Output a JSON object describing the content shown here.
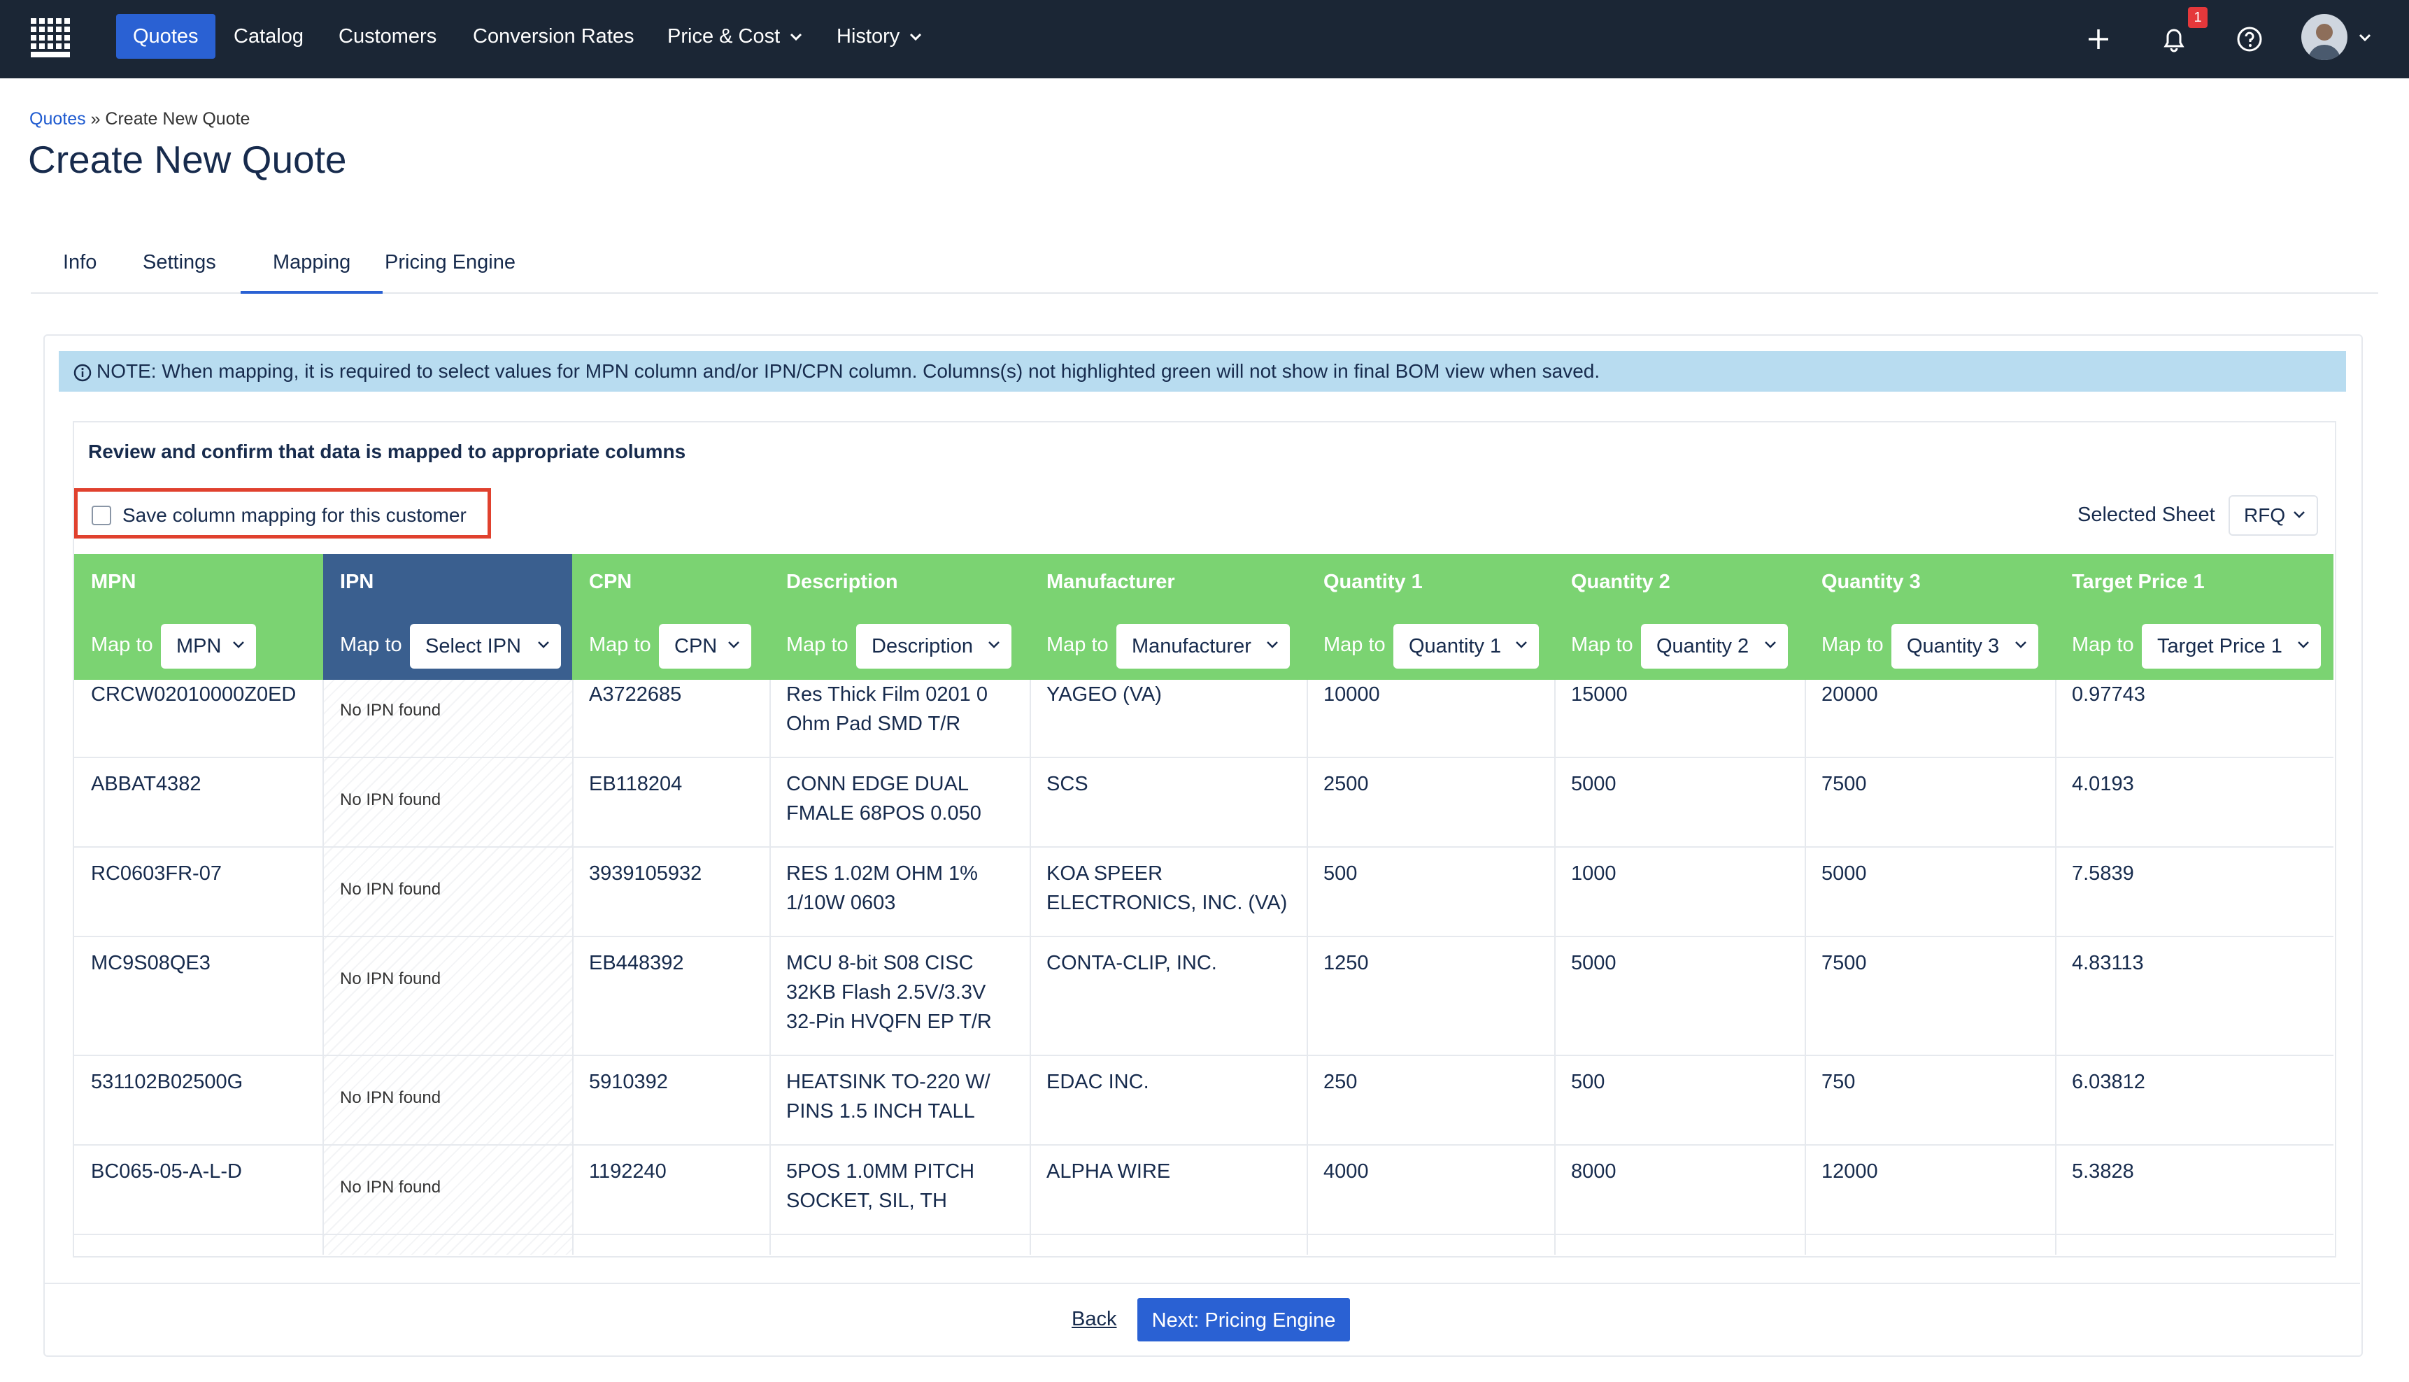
{
  "nav": {
    "items": [
      {
        "label": "Quotes"
      },
      {
        "label": "Catalog"
      },
      {
        "label": "Customers"
      },
      {
        "label": "Conversion Rates"
      },
      {
        "label": "Price & Cost"
      },
      {
        "label": "History"
      }
    ],
    "notification_count": "1",
    "icons": [
      "grid-logo-icon",
      "plus-icon",
      "bell-icon",
      "help-icon",
      "avatar",
      "chevron-down-icon"
    ]
  },
  "breadcrumb": {
    "link": "Quotes",
    "separator": "»",
    "current": "Create New Quote"
  },
  "page_title": "Create New Quote",
  "tabs": [
    {
      "label": "Info"
    },
    {
      "label": "Settings"
    },
    {
      "label": "Mapping"
    },
    {
      "label": "Pricing Engine"
    }
  ],
  "note": "NOTE: When mapping, it is required to select values for MPN column and/or IPN/CPN column. Columns(s) not highlighted green will not show in final BOM view when saved.",
  "review_heading": "Review and confirm that data is mapped to appropriate columns",
  "save_mapping_label": "Save column mapping for this customer",
  "selected_sheet": {
    "label": "Selected Sheet",
    "value": "RFQ"
  },
  "map_to_label": "Map to",
  "columns": [
    {
      "name": "MPN",
      "mapped": "MPN"
    },
    {
      "name": "IPN",
      "mapped": "Select IPN"
    },
    {
      "name": "CPN",
      "mapped": "CPN"
    },
    {
      "name": "Description",
      "mapped": "Description"
    },
    {
      "name": "Manufacturer",
      "mapped": "Manufacturer"
    },
    {
      "name": "Quantity 1",
      "mapped": "Quantity 1"
    },
    {
      "name": "Quantity 2",
      "mapped": "Quantity 2"
    },
    {
      "name": "Quantity 3",
      "mapped": "Quantity 3"
    },
    {
      "name": "Target Price 1",
      "mapped": "Target Price 1"
    }
  ],
  "no_ipn_text": "No IPN found",
  "rows": [
    {
      "mpn": "CRCW02010000Z0ED",
      "cpn": "A3722685",
      "desc": [
        "Res Thick Film 0201 0",
        "Ohm Pad SMD T/R"
      ],
      "mfr": [
        "YAGEO (VA)"
      ],
      "q1": "10000",
      "q2": "15000",
      "q3": "20000",
      "tp1": "0.97743"
    },
    {
      "mpn": "ABBAT4382",
      "cpn": "EB118204",
      "desc": [
        "CONN EDGE DUAL",
        "FMALE 68POS 0.050"
      ],
      "mfr": [
        "SCS"
      ],
      "q1": "2500",
      "q2": "5000",
      "q3": "7500",
      "tp1": "4.0193"
    },
    {
      "mpn": "RC0603FR-07",
      "cpn": "3939105932",
      "desc": [
        "RES 1.02M OHM 1%",
        "1/10W 0603"
      ],
      "mfr": [
        "KOA SPEER",
        "ELECTRONICS, INC. (VA)"
      ],
      "q1": "500",
      "q2": "1000",
      "q3": "5000",
      "tp1": "7.5839"
    },
    {
      "mpn": "MC9S08QE3",
      "cpn": "EB448392",
      "desc": [
        "MCU 8-bit S08 CISC",
        "32KB Flash 2.5V/3.3V",
        "32-Pin HVQFN EP T/R"
      ],
      "mfr": [
        "CONTA-CLIP, INC."
      ],
      "q1": "1250",
      "q2": "5000",
      "q3": "7500",
      "tp1": "4.83113"
    },
    {
      "mpn": "531102B02500G",
      "cpn": "5910392",
      "desc": [
        "HEATSINK TO-220 W/",
        "PINS 1.5 INCH TALL"
      ],
      "mfr": [
        "EDAC INC."
      ],
      "q1": "250",
      "q2": "500",
      "q3": "750",
      "tp1": "6.03812"
    },
    {
      "mpn": "BC065-05-A-L-D",
      "cpn": "1192240",
      "desc": [
        "5POS 1.0MM PITCH",
        "SOCKET, SIL, TH"
      ],
      "mfr": [
        "ALPHA WIRE"
      ],
      "q1": "4000",
      "q2": "8000",
      "q3": "12000",
      "tp1": "5.3828"
    }
  ],
  "footer": {
    "back_label": "Back",
    "next_label": "Next: Pricing Engine"
  },
  "colors": {
    "nav_bg": "#1b2635",
    "accent": "#2a61d3",
    "mapped_green": "#7bd372",
    "unmapped_blue": "#3a5f8f",
    "note_bg": "#b8dcf0",
    "highlight_red": "#e0412e"
  }
}
